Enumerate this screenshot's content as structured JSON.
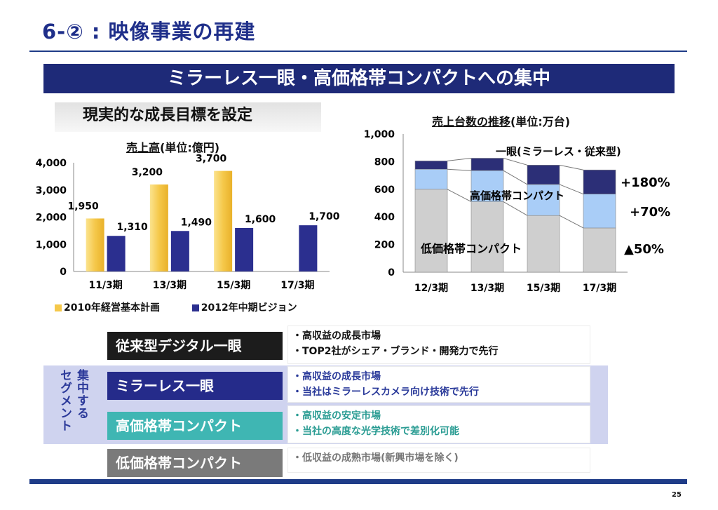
{
  "header": {
    "title": "6-② : 映像事業の再建",
    "banner": "ミラーレス一眼・高価格帯コンパクトへの集中",
    "subheading": "現実的な成長目標を設定"
  },
  "chart_data": [
    {
      "type": "bar",
      "title": "売上高",
      "title_unit": "(単位:億円)",
      "categories": [
        "11/3期",
        "13/3期",
        "15/3期",
        "17/3期"
      ],
      "series": [
        {
          "name": "2010年経営基本計画",
          "color": "#f5c84a",
          "values": [
            1950,
            3200,
            3700,
            null
          ]
        },
        {
          "name": "2012年中期ビジョン",
          "color": "#2b2f8f",
          "values": [
            1310,
            1490,
            1600,
            1700
          ]
        }
      ],
      "value_labels": [
        [
          "1,950",
          "3,200",
          "3,700",
          ""
        ],
        [
          "1,310",
          "1,490",
          "1,600",
          "1,700"
        ]
      ],
      "yticks": [
        "0",
        "1,000",
        "2,000",
        "3,000",
        "4,000"
      ],
      "ylim": [
        0,
        4000
      ]
    },
    {
      "type": "bar",
      "stacked": true,
      "title": "売上台数の推移",
      "title_unit": "(単位:万台)",
      "categories": [
        "12/3期",
        "13/3期",
        "15/3期",
        "17/3期"
      ],
      "series": [
        {
          "name": "低価格帯コンパクト",
          "color": "#cfcfcf",
          "values": [
            600,
            510,
            410,
            320
          ]
        },
        {
          "name": "高価格帯コンパクト",
          "color": "#a9cdf7",
          "values": [
            145,
            225,
            225,
            245
          ]
        },
        {
          "name": "一眼(ミラーレス・従来型)",
          "color": "#2c2f77",
          "values": [
            60,
            90,
            140,
            175
          ]
        }
      ],
      "series_labels": [
        "低価格帯コンパクト",
        "高価格帯コンパクト",
        "一眼(ミラーレス・従来型)"
      ],
      "change_labels": [
        "+180%",
        "+70%",
        "▲50%"
      ],
      "yticks": [
        "0",
        "200",
        "400",
        "600",
        "800",
        "1,000"
      ],
      "ylim": [
        0,
        1000
      ]
    }
  ],
  "segments": [
    {
      "name": "従来型デジタル一眼",
      "color": "#1c1c1c",
      "points": [
        "・高収益の成長市場",
        "・TOP2社がシェア・ブランド・開発力で先行"
      ],
      "text_color": "#111111"
    },
    {
      "name": "ミラーレス一眼",
      "color": "#252b8a",
      "points": [
        "・高収益の成長市場",
        "・当社はミラーレスカメラ向け技術で先行"
      ],
      "text_color": "#2a3a9a"
    },
    {
      "name": "高価格帯コンパクト",
      "color": "#3fb6b3",
      "points": [
        "・高収益の安定市場",
        "・当社の高度な光学技術で差別化可能"
      ],
      "text_color": "#2a9c93"
    },
    {
      "name": "低価格帯コンパクト",
      "color": "#7a7a7a",
      "points": [
        "・低収益の成熟市場(新興市場を除く)"
      ],
      "text_color": "#777777"
    }
  ],
  "segment_group_label": "集中するセグメント",
  "page_number": "25"
}
